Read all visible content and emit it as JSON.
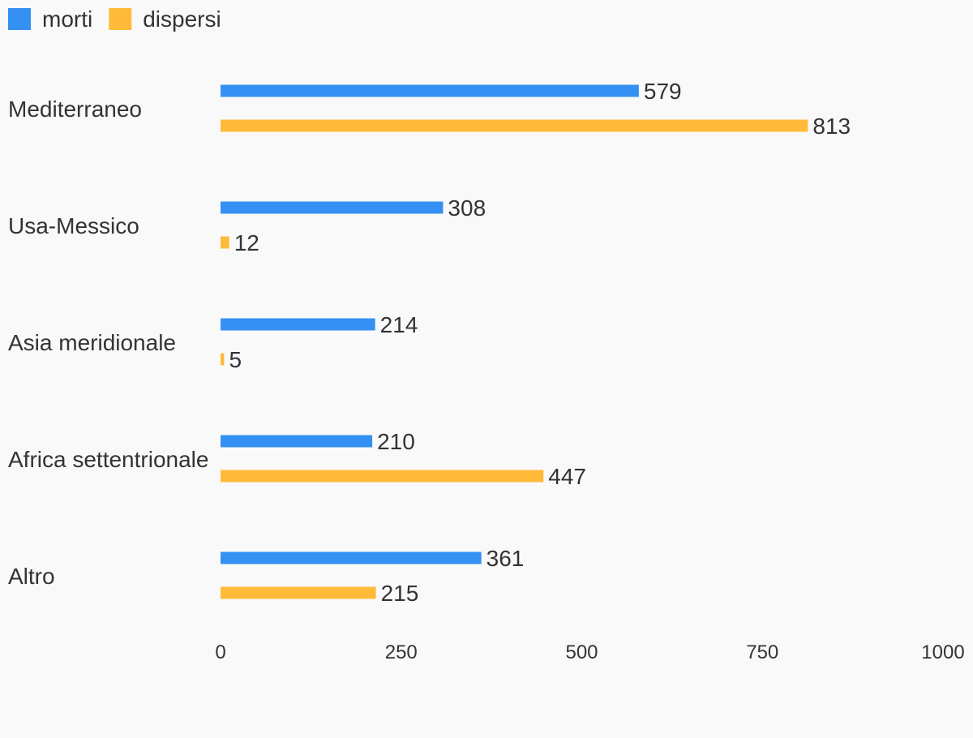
{
  "chart_data": {
    "type": "bar",
    "orientation": "horizontal",
    "categories": [
      "Mediterraneo",
      "Usa-Messico",
      "Asia meridionale",
      "Africa settentrionale",
      "Altro"
    ],
    "series": [
      {
        "name": "morti",
        "color": "#3590f3",
        "values": [
          579,
          308,
          214,
          210,
          361
        ]
      },
      {
        "name": "dispersi",
        "color": "#ffba39",
        "values": [
          813,
          12,
          5,
          447,
          215
        ]
      }
    ],
    "xlim": [
      0,
      1000
    ],
    "xticks": [
      0,
      250,
      500,
      750,
      1000
    ],
    "grid": false,
    "legend": "top-left",
    "title": "",
    "xlabel": "",
    "ylabel": ""
  }
}
